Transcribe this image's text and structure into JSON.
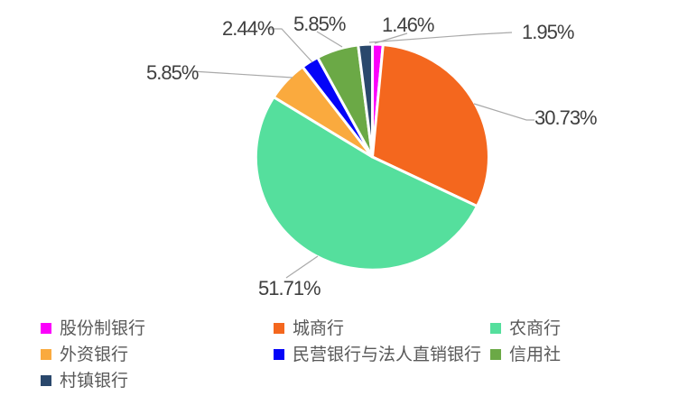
{
  "chart_data": {
    "type": "pie",
    "title": "",
    "legend_position": "bottom",
    "start_angle_deg": 0,
    "direction": "clockwise",
    "data_labels": "percent",
    "leader_line_color": "#a9a9a9",
    "label_text_color": "#3f3f3f",
    "legend_text_color": "#595959",
    "slices": [
      {
        "name": "股份制银行",
        "value": 1.46,
        "pct_label": "1.46%",
        "color": "#fb00fb"
      },
      {
        "name": "城商行",
        "value": 30.73,
        "pct_label": "30.73%",
        "color": "#f4671e"
      },
      {
        "name": "农商行",
        "value": 51.71,
        "pct_label": "51.71%",
        "color": "#55df9d"
      },
      {
        "name": "外资银行",
        "value": 5.85,
        "pct_label": "5.85%",
        "color": "#faaa3e"
      },
      {
        "name": "民营银行与法人直销银行",
        "value": 2.44,
        "pct_label": "2.44%",
        "color": "#0404f8"
      },
      {
        "name": "信用社",
        "value": 5.85,
        "pct_label": "5.85%",
        "color": "#6ba946"
      },
      {
        "name": "村镇银行",
        "value": 1.95,
        "pct_label": "1.95%",
        "color": "#2a486c"
      }
    ]
  }
}
